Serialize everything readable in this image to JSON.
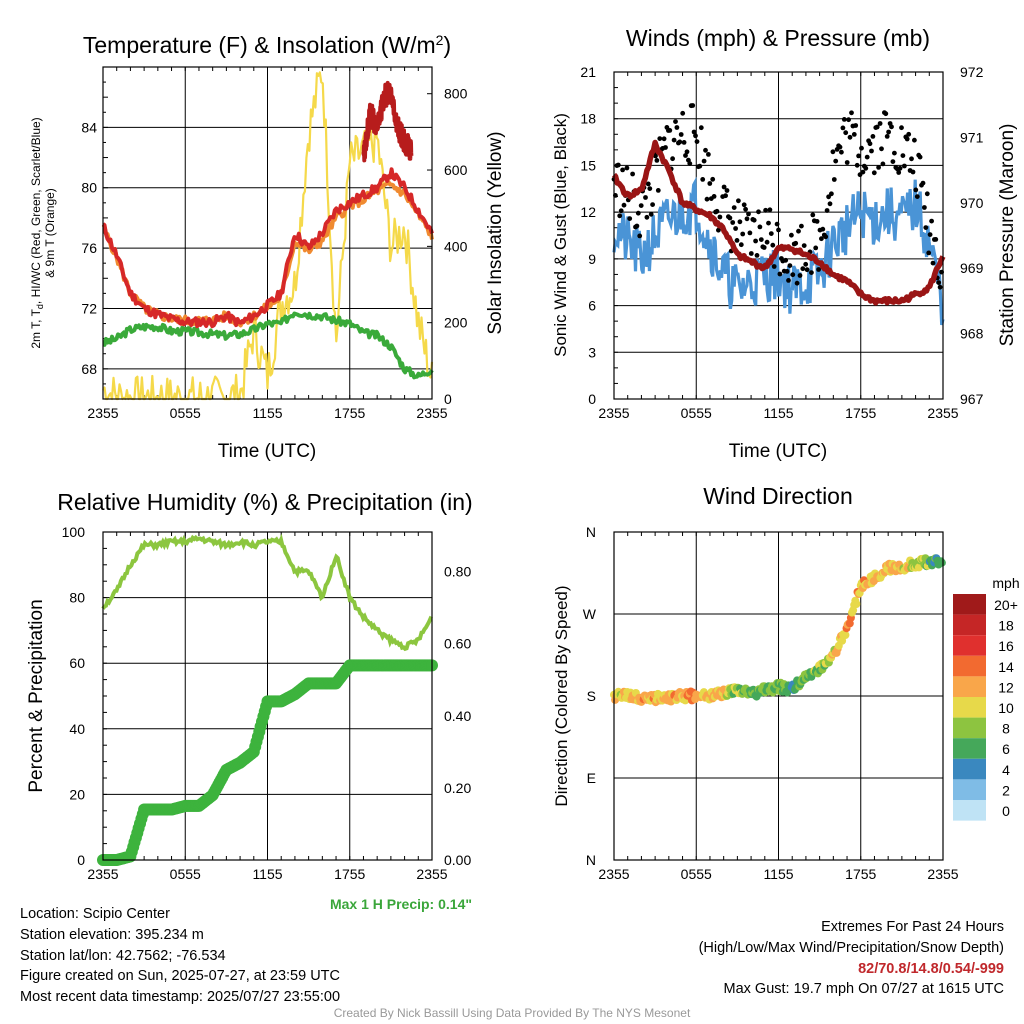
{
  "colors": {
    "temp": "#d62828",
    "dew": "#3aaa3a",
    "hiwc": "#b71c1c",
    "t9m": "#f08a30",
    "solar": "#f5d94a",
    "wind": "#4a94d6",
    "gust": "#000000",
    "pressure": "#9a1515",
    "rh": "#8cc63f",
    "precip": "#3db33d",
    "extremes": "#c0282c"
  },
  "xticks": [
    "2355",
    "0555",
    "1155",
    "1755",
    "2355"
  ],
  "chart_data": [
    {
      "id": "temp_solar",
      "type": "line",
      "title": "Temperature (F) & Insolation (W/m²)",
      "xlabel": "Time (UTC)",
      "ylabel": "2m T, Td, HI/WC (Red, Green, Scarlet/Blue) & 9m T (Orange)",
      "ylabel_line1": "2m T, T",
      "ylabel_sub": "d",
      "ylabel_line1b": ", HI/WC (Red, Green, Scarlet/Blue)",
      "ylabel_line2": "& 9m T (Orange)",
      "ylabel_right": "Solar Insolation (Yellow)",
      "ylim": [
        66,
        88
      ],
      "yticks": [
        "68",
        "72",
        "76",
        "80",
        "84"
      ],
      "ylim_right": [
        0,
        870
      ],
      "yticks_right": [
        "0",
        "200",
        "400",
        "600",
        "800"
      ],
      "x_hours": [
        0,
        1,
        2,
        3,
        4,
        5,
        6,
        7,
        8,
        9,
        10,
        11,
        12,
        13,
        14,
        15,
        16,
        17,
        18,
        19,
        20,
        21,
        22,
        23,
        24
      ],
      "series": [
        {
          "key": "t2m",
          "values": [
            77.5,
            75.5,
            73,
            72,
            71.6,
            71.3,
            71.1,
            71.1,
            71.1,
            71.5,
            71,
            71.5,
            72.2,
            73,
            77,
            76,
            77,
            78.5,
            79,
            79.5,
            80,
            81,
            80,
            78.5,
            77
          ]
        },
        {
          "key": "td",
          "values": [
            69.7,
            70,
            70.6,
            70.8,
            70.8,
            70.5,
            70.5,
            70.4,
            70.3,
            70.2,
            70.3,
            70.6,
            71,
            71,
            71.8,
            71.6,
            71.5,
            71.2,
            71,
            70.4,
            70.2,
            69.5,
            68,
            67.5,
            68
          ]
        },
        {
          "key": "t9m",
          "values": [
            77.4,
            75.4,
            73,
            72,
            71.6,
            71.3,
            71.2,
            71.2,
            71.2,
            71.5,
            71.1,
            71.5,
            72.1,
            72.8,
            76.5,
            75.8,
            76.5,
            78,
            78.8,
            79.2,
            79.8,
            80.2,
            79.6,
            78.2,
            76.8
          ]
        },
        {
          "key": "hi",
          "x": [
            19,
            19.5,
            20,
            20.5,
            21,
            21.5,
            22,
            22.5
          ],
          "values": [
            82,
            85,
            84,
            86,
            86.5,
            84,
            83,
            82.5
          ]
        },
        {
          "key": "solar",
          "values": [
            25,
            5,
            2,
            2,
            2,
            2,
            2,
            2,
            2,
            5,
            10,
            180,
            60,
            250,
            300,
            700,
            870,
            150,
            620,
            650,
            680,
            400,
            450,
            200,
            50
          ]
        }
      ]
    },
    {
      "id": "winds",
      "type": "line",
      "title": "Winds (mph) & Pressure (mb)",
      "xlabel": "Time (UTC)",
      "ylabel": "Sonic Wind & Gust (Blue, Black)",
      "ylabel_right": "Station Pressure (Maroon)",
      "ylim": [
        0,
        21
      ],
      "yticks": [
        "0",
        "3",
        "6",
        "9",
        "12",
        "15",
        "18",
        "21"
      ],
      "ylim_right": [
        967,
        972
      ],
      "yticks_right": [
        "967",
        "968",
        "969",
        "970",
        "971",
        "972"
      ],
      "x_hours": [
        0,
        1,
        2,
        3,
        4,
        5,
        6,
        7,
        8,
        9,
        10,
        11,
        12,
        13,
        14,
        15,
        16,
        17,
        18,
        19,
        20,
        21,
        22,
        23,
        24
      ],
      "series": [
        {
          "key": "wind",
          "values": [
            11,
            10,
            9,
            10.5,
            11.5,
            12,
            12.5,
            10,
            8,
            7,
            7.5,
            8,
            8,
            7,
            7.5,
            8,
            10,
            11,
            12,
            11.5,
            12,
            11.5,
            12.5,
            10,
            6
          ]
        },
        {
          "key": "gust",
          "values": [
            14,
            13,
            12,
            14,
            16.5,
            17,
            17,
            14,
            12,
            11,
            10,
            11,
            10,
            9,
            10,
            10,
            15,
            17,
            16,
            16.5,
            17,
            16,
            15,
            11,
            8
          ]
        },
        {
          "key": "pressure",
          "values": [
            970.4,
            970.1,
            970.2,
            970.9,
            970.5,
            970.0,
            969.9,
            969.8,
            969.6,
            969.2,
            969.1,
            969.0,
            969.3,
            969.3,
            969.2,
            969.1,
            968.9,
            968.8,
            968.6,
            968.5,
            968.5,
            968.5,
            968.6,
            968.7,
            969.2
          ]
        }
      ]
    },
    {
      "id": "rh_precip",
      "type": "line",
      "title": "Relative Humidity (%) & Precipitation (in)",
      "ylabel": "Percent & Precipitation",
      "ylim": [
        0,
        100
      ],
      "yticks": [
        "0",
        "20",
        "40",
        "60",
        "80",
        "100"
      ],
      "ylim_right": [
        0,
        0.91
      ],
      "yticks_right": [
        "0.00",
        "0.20",
        "0.40",
        "0.60",
        "0.80"
      ],
      "x_hours": [
        0,
        1,
        2,
        3,
        4,
        5,
        6,
        7,
        8,
        9,
        10,
        11,
        12,
        13,
        14,
        15,
        16,
        17,
        18,
        19,
        20,
        21,
        22,
        23,
        24
      ],
      "series": [
        {
          "key": "rh",
          "values": [
            77,
            82,
            90,
            96,
            96,
            97,
            97,
            98,
            97,
            96,
            97,
            96,
            97,
            97,
            88,
            88,
            80,
            93,
            80,
            74,
            70,
            67,
            65,
            67,
            74
          ]
        },
        {
          "key": "precip",
          "values": [
            0,
            0,
            0.01,
            0.14,
            0.14,
            0.14,
            0.15,
            0.15,
            0.18,
            0.25,
            0.27,
            0.3,
            0.44,
            0.44,
            0.46,
            0.49,
            0.49,
            0.49,
            0.54,
            0.54,
            0.54,
            0.54,
            0.54,
            0.54,
            0.54
          ]
        }
      ],
      "note": "Max 1 H Precip: 0.14\""
    },
    {
      "id": "wind_dir",
      "type": "scatter",
      "title": "Wind Direction",
      "ylabel": "Direction (Colored By Speed)",
      "yticks": [
        "N",
        "E",
        "S",
        "W",
        "N"
      ],
      "ylim_deg": [
        0,
        360
      ],
      "x_hours": [
        0,
        1,
        2,
        3,
        4,
        5,
        6,
        7,
        8,
        9,
        10,
        11,
        12,
        13,
        14,
        15,
        16,
        17,
        18,
        19,
        20,
        21,
        22,
        23,
        24
      ],
      "direction_deg": [
        180,
        180,
        178,
        178,
        178,
        180,
        180,
        181,
        183,
        185,
        183,
        186,
        190,
        188,
        200,
        210,
        225,
        255,
        300,
        310,
        320,
        322,
        325,
        327,
        330
      ],
      "speed_mph": [
        10,
        10,
        11,
        12,
        11,
        12,
        12,
        11,
        11,
        8,
        8,
        7,
        7,
        6,
        7,
        8,
        10,
        12,
        12,
        11,
        11,
        10,
        9,
        7,
        5
      ],
      "legend": {
        "title": "mph",
        "labels": [
          "20+",
          "18",
          "16",
          "14",
          "12",
          "10",
          "8",
          "6",
          "4",
          "2",
          "0"
        ],
        "colors": [
          "#a01a1a",
          "#c52626",
          "#e0302e",
          "#f26a30",
          "#f9a64a",
          "#e7d94a",
          "#8dc440",
          "#45a85a",
          "#3a88bf",
          "#7fbce6",
          "#bfe3f5"
        ]
      }
    }
  ],
  "footer": {
    "location": "Location: Scipio Center",
    "elevation": "Station elevation: 395.234 m",
    "latlon": "Station lat/lon: 42.7562; -76.534",
    "created": "Figure created on Sun, 2025-07-27, at 23:59 UTC",
    "recent": "Most recent data timestamp: 2025/07/27 23:55:00",
    "extremes_title": "Extremes For Past 24 Hours",
    "extremes_sub": "(High/Low/Max Wind/Precipitation/Snow Depth)",
    "extremes_values": "82/70.8/14.8/0.54/-999",
    "max_gust": "Max Gust: 19.7 mph On 07/27 at 1615 UTC",
    "credit": "Created By Nick Bassill Using Data Provided By The NYS Mesonet"
  }
}
